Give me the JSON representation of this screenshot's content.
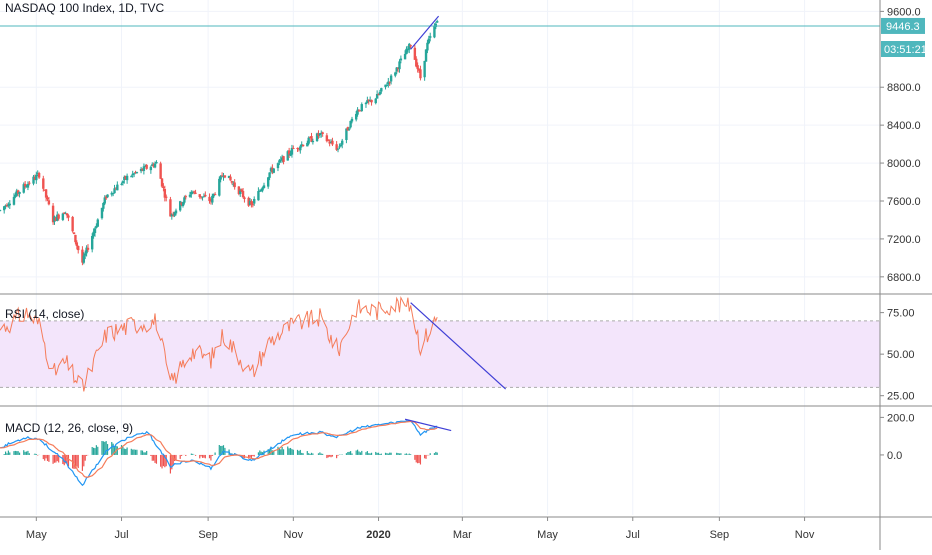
{
  "colors": {
    "up": "#26a69a",
    "down": "#ef5350",
    "rsi_line": "#f57c5a",
    "rsi_band": "#f3e5fb",
    "macd_line": "#2196f3",
    "signal_line": "#f57c5a",
    "trendline": "#3f3fd6",
    "price_line": "#4fb7bd",
    "axis_text": "#333333",
    "grid": "#f0f3fa",
    "pane_border": "#8a8a8a"
  },
  "chart_data": {
    "type": "candlestick",
    "title": "NASDAQ 100 Index, 1D, TVC",
    "symbol": "NASDAQ 100 Index",
    "interval": "1D",
    "exchange": "TVC",
    "last_price": "9446.3",
    "countdown": "03:51:21",
    "x_axis": {
      "labels": [
        "May",
        "Jul",
        "Sep",
        "Nov",
        "2020",
        "Mar",
        "May",
        "Jul",
        "Sep",
        "Nov"
      ],
      "range_start": "2019-04-05",
      "range_end": "2020-12-25"
    },
    "price_pane": {
      "ylim": [
        6640,
        9720
      ],
      "ticks": [
        "9600.0",
        "8800.0",
        "8400.0",
        "8000.0",
        "7600.0",
        "7200.0",
        "6800.0"
      ],
      "anchors": [
        [
          "2019-04-05",
          7500
        ],
        [
          "2019-04-22",
          7750
        ],
        [
          "2019-05-03",
          7880
        ],
        [
          "2019-05-13",
          7400
        ],
        [
          "2019-05-22",
          7500
        ],
        [
          "2019-06-03",
          6950
        ],
        [
          "2019-06-20",
          7650
        ],
        [
          "2019-07-05",
          7850
        ],
        [
          "2019-07-26",
          8000
        ],
        [
          "2019-08-05",
          7450
        ],
        [
          "2019-08-20",
          7700
        ],
        [
          "2019-09-03",
          7600
        ],
        [
          "2019-09-12",
          7900
        ],
        [
          "2019-10-02",
          7550
        ],
        [
          "2019-10-15",
          7900
        ],
        [
          "2019-11-01",
          8150
        ],
        [
          "2019-11-20",
          8300
        ],
        [
          "2019-12-03",
          8150
        ],
        [
          "2019-12-16",
          8550
        ],
        [
          "2019-12-31",
          8700
        ],
        [
          "2020-01-10",
          8900
        ],
        [
          "2020-01-24",
          9250
        ],
        [
          "2020-01-31",
          8900
        ],
        [
          "2020-02-05",
          9250
        ],
        [
          "2020-02-12",
          9500
        ]
      ],
      "trendlines": [
        {
          "from": [
            "2020-01-24",
            9200
          ],
          "to": [
            "2020-02-13",
            9550
          ]
        }
      ]
    },
    "rsi_pane": {
      "title": "RSI (14, close)",
      "ylim": [
        20,
        85
      ],
      "band": [
        30,
        70
      ],
      "ticks": [
        "75.00",
        "50.00",
        "25.00"
      ],
      "anchors": [
        [
          "2019-04-05",
          65
        ],
        [
          "2019-04-24",
          75
        ],
        [
          "2019-05-03",
          68
        ],
        [
          "2019-05-13",
          38
        ],
        [
          "2019-05-22",
          45
        ],
        [
          "2019-06-03",
          29
        ],
        [
          "2019-06-20",
          62
        ],
        [
          "2019-07-10",
          68
        ],
        [
          "2019-07-26",
          70
        ],
        [
          "2019-08-05",
          32
        ],
        [
          "2019-08-20",
          52
        ],
        [
          "2019-09-03",
          47
        ],
        [
          "2019-09-12",
          62
        ],
        [
          "2019-10-02",
          38
        ],
        [
          "2019-10-15",
          58
        ],
        [
          "2019-11-01",
          68
        ],
        [
          "2019-11-20",
          72
        ],
        [
          "2019-12-03",
          52
        ],
        [
          "2019-12-16",
          78
        ],
        [
          "2019-12-31",
          76
        ],
        [
          "2020-01-10",
          80
        ],
        [
          "2020-01-24",
          80
        ],
        [
          "2020-01-31",
          55
        ],
        [
          "2020-02-05",
          62
        ],
        [
          "2020-02-12",
          72
        ]
      ],
      "trendlines": [
        {
          "from": [
            "2020-01-24",
            81
          ],
          "to": [
            "2020-04-01",
            29
          ]
        }
      ]
    },
    "macd_pane": {
      "title": "MACD (12, 26, close, 9)",
      "ylim": [
        -320,
        250
      ],
      "ticks": [
        "200.0",
        "0.0"
      ],
      "macd_anchors": [
        [
          "2019-04-05",
          40
        ],
        [
          "2019-04-24",
          95
        ],
        [
          "2019-05-03",
          85
        ],
        [
          "2019-05-13",
          20
        ],
        [
          "2019-05-22",
          -40
        ],
        [
          "2019-06-03",
          -160
        ],
        [
          "2019-06-20",
          20
        ],
        [
          "2019-07-05",
          90
        ],
        [
          "2019-07-20",
          120
        ],
        [
          "2019-08-05",
          -60
        ],
        [
          "2019-08-20",
          -25
        ],
        [
          "2019-09-03",
          -70
        ],
        [
          "2019-09-12",
          20
        ],
        [
          "2019-10-02",
          -30
        ],
        [
          "2019-10-15",
          30
        ],
        [
          "2019-11-01",
          110
        ],
        [
          "2019-11-20",
          120
        ],
        [
          "2019-12-03",
          95
        ],
        [
          "2019-12-16",
          140
        ],
        [
          "2019-12-31",
          160
        ],
        [
          "2020-01-10",
          170
        ],
        [
          "2020-01-24",
          185
        ],
        [
          "2020-01-31",
          110
        ],
        [
          "2020-02-05",
          130
        ],
        [
          "2020-02-12",
          155
        ]
      ],
      "trendlines": [
        {
          "from": [
            "2020-01-20",
            190
          ],
          "to": [
            "2020-02-22",
            130
          ]
        }
      ]
    }
  }
}
